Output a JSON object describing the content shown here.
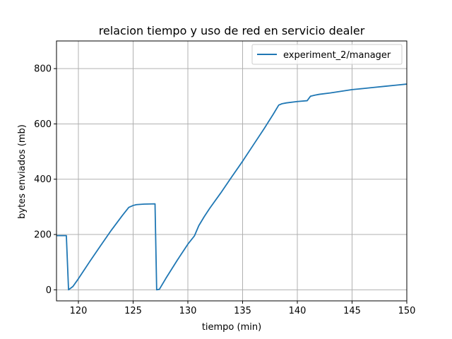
{
  "chart_data": {
    "type": "line",
    "title": "relacion tiempo y uso de red en servicio dealer",
    "xlabel": "tiempo (min)",
    "ylabel": "bytes enviados (mb)",
    "xlim": [
      118,
      150
    ],
    "ylim": [
      -40,
      900
    ],
    "xticks": [
      120,
      125,
      130,
      135,
      140,
      145,
      150
    ],
    "yticks": [
      0,
      200,
      400,
      600,
      800
    ],
    "grid": true,
    "legend_position": "top-right",
    "series": [
      {
        "name": "experiment_2/manager",
        "color": "#1f77b4",
        "x": [
          118.0,
          118.9,
          119.1,
          119.5,
          120.0,
          121.0,
          122.0,
          123.0,
          124.0,
          124.6,
          125.0,
          125.3,
          126.0,
          127.0,
          127.15,
          127.4,
          128.0,
          129.0,
          130.0,
          130.6,
          131.0,
          131.5,
          132.0,
          133.0,
          134.0,
          135.0,
          136.0,
          137.0,
          137.8,
          138.3,
          138.6,
          139.0,
          140.0,
          140.9,
          141.2,
          141.6,
          142.0,
          143.0,
          144.0,
          145.0,
          146.0,
          147.0,
          148.0,
          149.0,
          150.0
        ],
        "y": [
          196,
          196,
          0,
          12,
          40,
          100,
          158,
          215,
          268,
          298,
          305,
          308,
          310,
          311,
          0,
          2,
          42,
          105,
          165,
          195,
          232,
          265,
          295,
          350,
          408,
          465,
          525,
          585,
          635,
          668,
          673,
          676,
          681,
          684,
          700,
          704,
          707,
          712,
          718,
          724,
          728,
          732,
          736,
          740,
          744
        ]
      }
    ]
  }
}
